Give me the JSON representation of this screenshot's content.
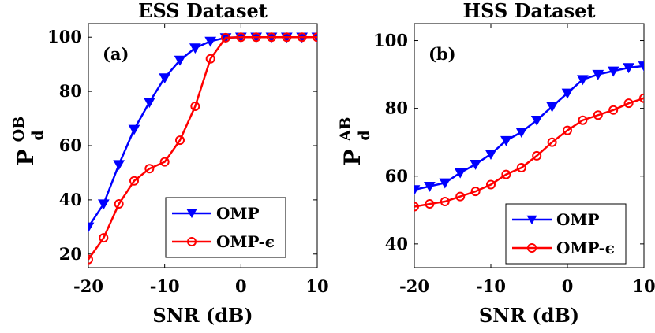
{
  "chart_data": [
    {
      "type": "line",
      "title": "ESS Dataset",
      "panel_label": "(a)",
      "xlabel": "SNR (dB)",
      "ylabel": "P",
      "ylabel_sup": "OB",
      "ylabel_sub": "d",
      "xlim": [
        -20,
        10
      ],
      "ylim": [
        15,
        105
      ],
      "xticks": [
        -20,
        -10,
        0,
        10
      ],
      "yticks": [
        20,
        40,
        60,
        80,
        100
      ],
      "legend_position": "bottom-right",
      "x": [
        -20,
        -18,
        -16,
        -14,
        -12,
        -10,
        -8,
        -6,
        -4,
        -2,
        0,
        2,
        4,
        6,
        8,
        10
      ],
      "series": [
        {
          "name": "OMP",
          "color": "#0000ff",
          "marker": "triangle-down",
          "values": [
            30,
            38.5,
            53,
            66,
            76,
            85,
            91.5,
            96,
            98.5,
            99.8,
            100,
            100,
            100,
            100,
            100,
            100
          ]
        },
        {
          "name": "OMP-ϵ",
          "color": "#ff0000",
          "marker": "circle",
          "values": [
            18,
            26,
            38.5,
            47,
            51.5,
            54,
            62,
            74.5,
            92,
            99.8,
            100,
            100,
            100,
            100,
            100,
            100
          ]
        }
      ]
    },
    {
      "type": "line",
      "title": "HSS Dataset",
      "panel_label": "(b)",
      "xlabel": "SNR (dB)",
      "ylabel": "P",
      "ylabel_sup": "AB",
      "ylabel_sub": "d",
      "xlim": [
        -20,
        10
      ],
      "ylim": [
        33,
        105
      ],
      "xticks": [
        -20,
        -10,
        0,
        10
      ],
      "yticks": [
        40,
        60,
        80,
        100
      ],
      "legend_position": "bottom-right",
      "x": [
        -20,
        -18,
        -16,
        -14,
        -12,
        -10,
        -8,
        -6,
        -4,
        -2,
        0,
        2,
        4,
        6,
        8,
        10
      ],
      "series": [
        {
          "name": "OMP",
          "color": "#0000ff",
          "marker": "triangle-down",
          "values": [
            56,
            57,
            58,
            61,
            63.5,
            66.5,
            70.5,
            73,
            76.5,
            80.5,
            84.5,
            88.5,
            90,
            91,
            92,
            92.5
          ]
        },
        {
          "name": "OMP-ϵ",
          "color": "#ff0000",
          "marker": "circle",
          "values": [
            51,
            51.8,
            52.5,
            54,
            55.5,
            57.5,
            60.5,
            62.5,
            66,
            70,
            73.5,
            76.5,
            78,
            79.5,
            81.5,
            83
          ]
        }
      ]
    }
  ]
}
